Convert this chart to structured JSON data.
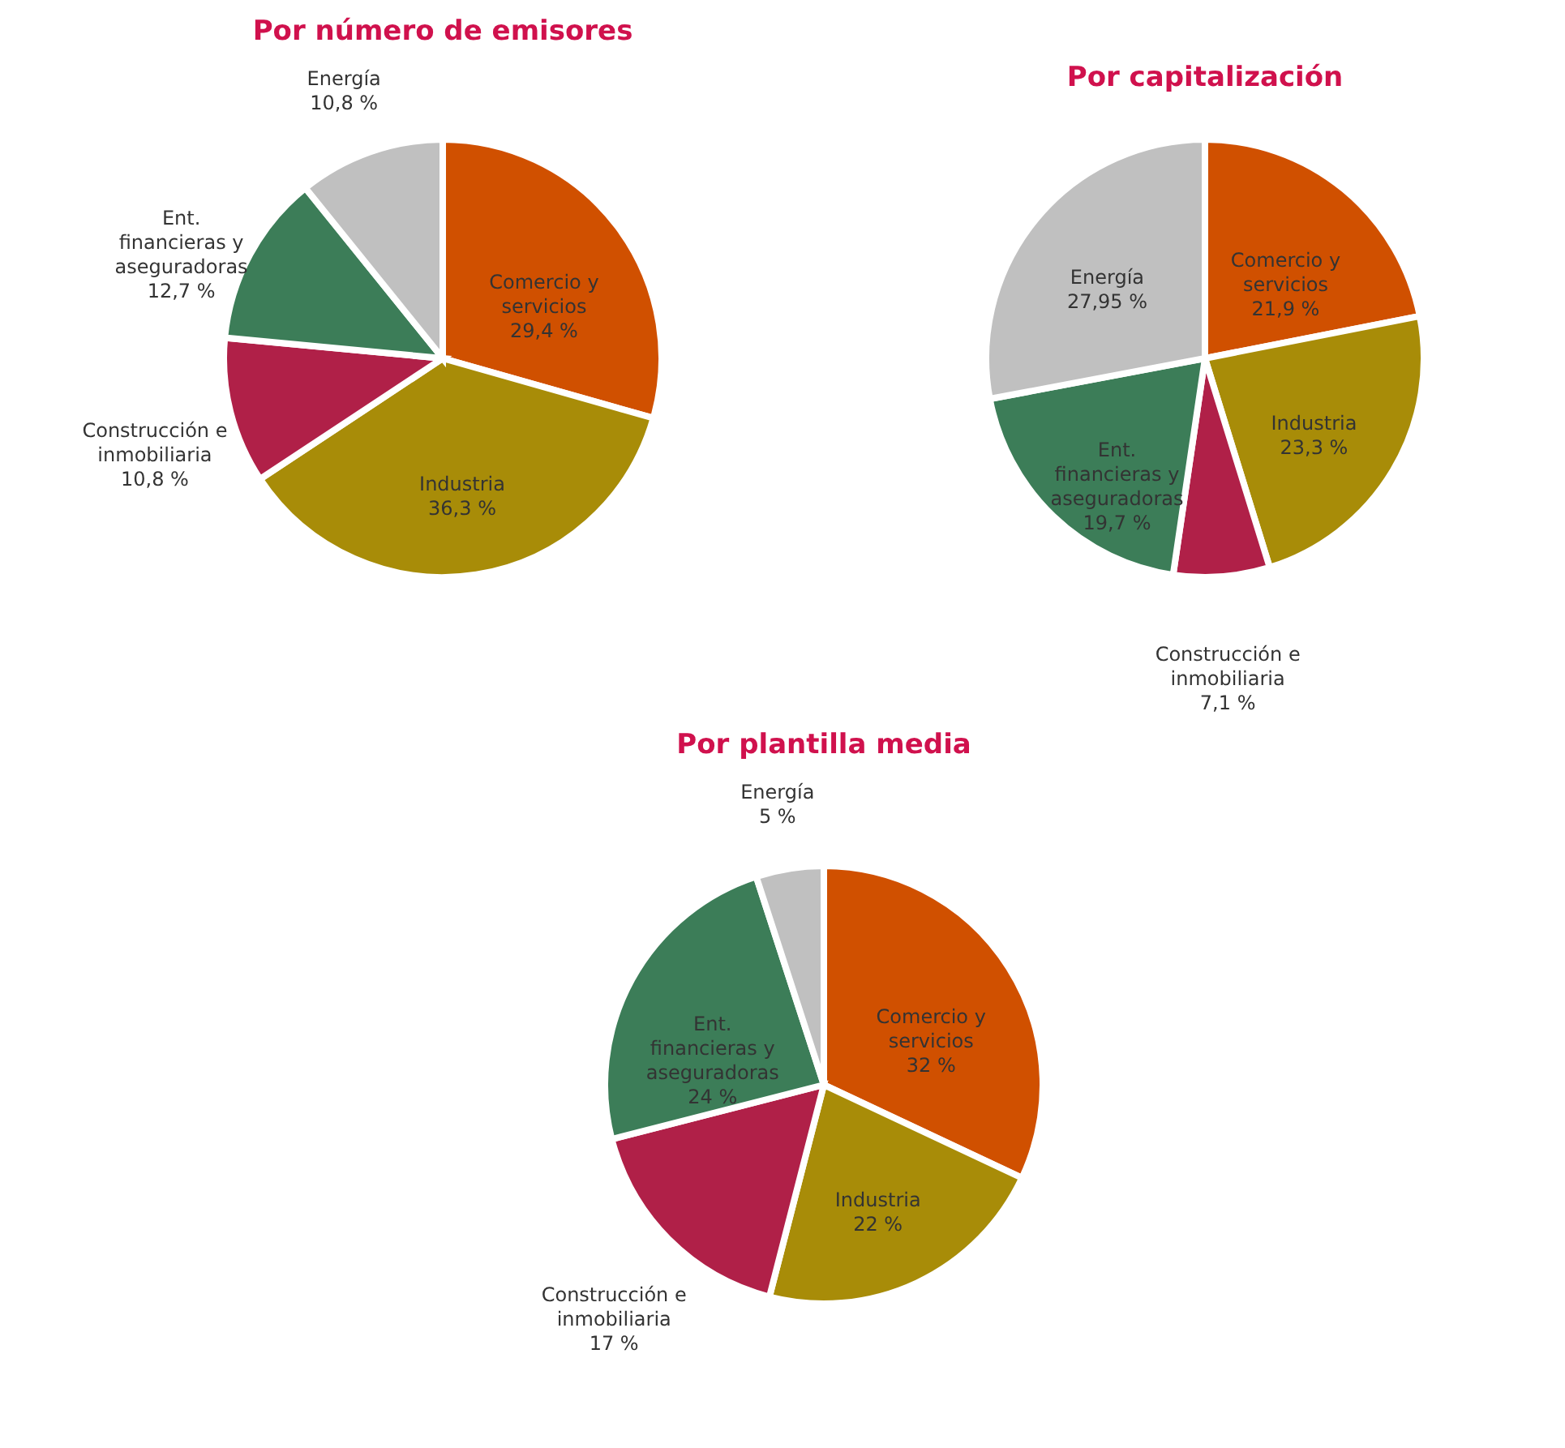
{
  "chart_data": [
    {
      "type": "pie",
      "title": "Por número de emisores",
      "categories": [
        "Comercio y servicios",
        "Industria",
        "Construcción e inmobiliaria",
        "Ent. financieras y aseguradoras",
        "Energía"
      ],
      "values": [
        29.4,
        36.3,
        10.8,
        12.7,
        10.8
      ],
      "value_labels": [
        "29,4 %",
        "36,3 %",
        "10,8 %",
        "12,7 %",
        "10,8 %"
      ],
      "colors": [
        "#d05000",
        "#a88c08",
        "#b02048",
        "#3c7d58",
        "#c0c0c0"
      ],
      "legend": false
    },
    {
      "type": "pie",
      "title": "Por capitalización",
      "categories": [
        "Comercio y servicios",
        "Industria",
        "Construcción e inmobiliaria",
        "Ent. financieras y aseguradoras",
        "Energía"
      ],
      "values": [
        21.9,
        23.3,
        7.1,
        19.7,
        27.95
      ],
      "value_labels": [
        "21,9 %",
        "23,3 %",
        "7,1 %",
        "19,7 %",
        "27,95 %"
      ],
      "colors": [
        "#d05000",
        "#a88c08",
        "#b02048",
        "#3c7d58",
        "#c0c0c0"
      ],
      "legend": false
    },
    {
      "type": "pie",
      "title": "Por plantilla media",
      "categories": [
        "Comercio y servicios",
        "Industria",
        "Construcción e inmobiliaria",
        "Ent. financieras y aseguradoras",
        "Energía"
      ],
      "values": [
        32,
        22,
        17,
        24,
        5
      ],
      "value_labels": [
        "32 %",
        "22 %",
        "17 %",
        "24 %",
        "5 %"
      ],
      "colors": [
        "#d05000",
        "#a88c08",
        "#b02048",
        "#3c7d58",
        "#c0c0c0"
      ],
      "legend": false
    }
  ]
}
